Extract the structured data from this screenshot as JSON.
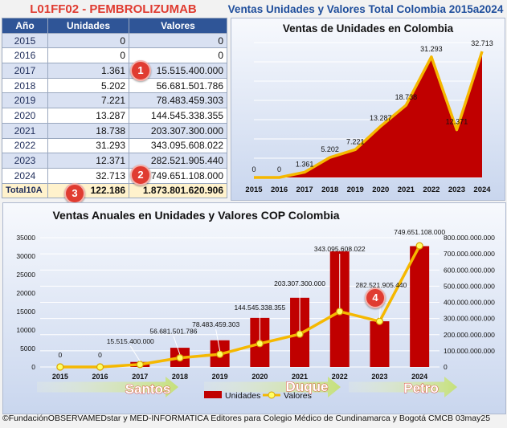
{
  "header": {
    "code_title": "L01FF02 - PEMBROLIZUMAB",
    "main_title": "Ventas Unidades y Valores Total Colombia 2015a2024"
  },
  "table": {
    "headers": [
      "Año",
      "Unidades",
      "Valores"
    ],
    "rows": [
      {
        "year": "2015",
        "units": "0",
        "value": "0"
      },
      {
        "year": "2016",
        "units": "0",
        "value": "0"
      },
      {
        "year": "2017",
        "units": "1.361",
        "value": "15.515.400.000"
      },
      {
        "year": "2018",
        "units": "5.202",
        "value": "56.681.501.786"
      },
      {
        "year": "2019",
        "units": "7.221",
        "value": "78.483.459.303"
      },
      {
        "year": "2020",
        "units": "13.287",
        "value": "144.545.338.355"
      },
      {
        "year": "2021",
        "units": "18.738",
        "value": "203.307.300.000"
      },
      {
        "year": "2022",
        "units": "31.293",
        "value": "343.095.608.022"
      },
      {
        "year": "2023",
        "units": "12.371",
        "value": "282.521.905.440"
      },
      {
        "year": "2024",
        "units": "32.713",
        "value": "749.651.108.000"
      }
    ],
    "total": {
      "label": "Total10A",
      "units": "122.186",
      "value": "1.873.801.620.906"
    }
  },
  "badges": [
    "1",
    "2",
    "3",
    "4"
  ],
  "presidents": [
    "Santos",
    "Duque",
    "Petro"
  ],
  "footer": "©FundaciónOBSERVAMEDstar y MED-INFORMATICA Editores para Colegio Médico de Cundinamarca y Bogotá CMCB 03may25",
  "colors": {
    "bar": "#c00000",
    "line": "#f5b800",
    "header": "#2f5597",
    "title_red": "#e03c31",
    "title_blue": "#1f4e9c",
    "arrow": "#c5e07a"
  },
  "chart_data": [
    {
      "type": "area",
      "title": "Ventas de Unidades en Colombia",
      "x": [
        "2015",
        "2016",
        "2017",
        "2018",
        "2019",
        "2020",
        "2021",
        "2022",
        "2023",
        "2024"
      ],
      "series": [
        {
          "values": [
            0,
            0,
            1361,
            5202,
            7221,
            13287,
            18738,
            31293,
            12371,
            32713
          ]
        }
      ],
      "data_labels": [
        "0",
        "0",
        "1.361",
        "5.202",
        "7.221",
        "13.287",
        "18.738",
        "31.293",
        "12.371",
        "32.713"
      ],
      "ylim": [
        0,
        35000
      ],
      "grid": true
    },
    {
      "type": "bar",
      "title": "Ventas Anuales en Unidades y Valores COP Colombia",
      "categories": [
        "2015",
        "2016",
        "2017",
        "2018",
        "2019",
        "2020",
        "2021",
        "2022",
        "2023",
        "2024"
      ],
      "series": [
        {
          "name": "Unidades",
          "type": "bar",
          "axis": "left",
          "values": [
            0,
            0,
            1361,
            5202,
            7221,
            13287,
            18738,
            31293,
            12371,
            32713
          ]
        },
        {
          "name": "Valores",
          "type": "line",
          "axis": "right",
          "values": [
            0,
            0,
            15515400000,
            56681501786,
            78483459303,
            144545338355,
            203307300000,
            343095608022,
            282521905440,
            749651108000
          ]
        }
      ],
      "value_labels": [
        "0",
        "0",
        "15.515.400.000",
        "56.681.501.786",
        "78.483.459.303",
        "144.545.338.355",
        "203.307.300.000",
        "343.095.608.022",
        "282.521.905.440",
        "749.651.108.000"
      ],
      "y_left_ticks": [
        "0",
        "5000",
        "10000",
        "15000",
        "20000",
        "25000",
        "30000",
        "35000"
      ],
      "y_right_ticks": [
        "0",
        "100.000.000.000",
        "200.000.000.000",
        "300.000.000.000",
        "400.000.000.000",
        "500.000.000.000",
        "600.000.000.000",
        "700.000.000.000",
        "800.000.000.000"
      ],
      "ylim_left": [
        0,
        35000
      ],
      "ylim_right": [
        0,
        800000000000
      ],
      "legend": "bottom-center",
      "grid": true
    }
  ]
}
